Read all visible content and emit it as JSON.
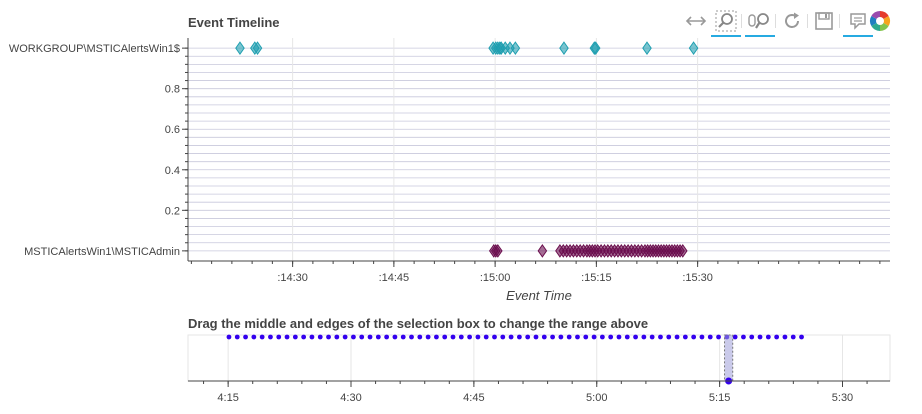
{
  "chart_data": [
    {
      "type": "scatter",
      "title": "Event Timeline",
      "xlabel": "Event Time",
      "ylabel": "",
      "x_ticks": [
        ":14:30",
        ":14:45",
        ":15:00",
        ":15:15",
        ":15:30"
      ],
      "x_tick_minutes": [
        0,
        15,
        30,
        45,
        60
      ],
      "xlim_minutes": [
        -15.5,
        88.5
      ],
      "ylim": [
        -0.05,
        1.05
      ],
      "y_ticks": [
        {
          "value": 1.0,
          "label": "WORKGROUP\\MSTICAlertsWin1$"
        },
        {
          "value": 0.8,
          "label": "0.8"
        },
        {
          "value": 0.6,
          "label": "0.6"
        },
        {
          "value": 0.4,
          "label": "0.4"
        },
        {
          "value": 0.2,
          "label": "0.2"
        },
        {
          "value": 0.0,
          "label": "MSTICAlertsWin1\\MSTICAdmin"
        }
      ],
      "marker": "diamond",
      "series": [
        {
          "name": "WORKGROUP\\MSTICAlertsWin1$",
          "color": "#1f9fb0",
          "y": 1.0,
          "x_minutes": [
            -7.8,
            -5.6,
            -5.2,
            29.7,
            30.1,
            30.4,
            30.7,
            30.9,
            31.5,
            32.2,
            33.0,
            40.2,
            44.7,
            44.9,
            52.5,
            59.4
          ]
        },
        {
          "name": "MSTICAlertsWin1\\MSTICAdmin",
          "color": "#6b0e4e",
          "y": 0.0,
          "x_minutes": [
            29.8,
            30.1,
            30.4,
            37.0,
            39.6,
            40.1,
            40.6,
            41.1,
            41.6,
            42.1,
            42.6,
            43.1,
            43.6,
            44.0,
            44.4,
            44.8,
            45.2,
            45.7,
            46.2,
            46.7,
            47.2,
            47.7,
            48.2,
            48.7,
            49.2,
            49.7,
            50.2,
            50.7,
            51.2,
            51.7,
            52.2,
            52.6,
            53.0,
            53.4,
            53.8,
            54.2,
            54.6,
            55.0,
            55.4,
            55.8,
            56.2,
            56.6,
            57.0,
            57.4,
            57.8
          ]
        }
      ]
    },
    {
      "type": "scatter",
      "title": "Drag the middle and edges of the selection box to change the range above",
      "x_ticks": [
        "4:15",
        "4:30",
        "4:45",
        "5:00",
        "5:15",
        "5:30"
      ],
      "x_tick_minutes": [
        0,
        15,
        30,
        45,
        60,
        75
      ],
      "xlim_minutes": [
        -4.9,
        80.8
      ],
      "color": "#3300ee",
      "point_count": 70,
      "x_range_minutes": [
        0.1,
        70.0
      ],
      "selection_minutes": [
        60.6,
        61.6
      ]
    }
  ],
  "toolbar": [
    {
      "name": "pan-icon",
      "active": false
    },
    {
      "name": "box-zoom-icon",
      "active": true
    },
    {
      "name": "wheel-zoom-icon",
      "active": true
    },
    {
      "name": "reset-icon",
      "active": false
    },
    {
      "name": "save-icon",
      "active": false
    },
    {
      "name": "hover-icon",
      "active": true
    },
    {
      "name": "bokeh-logo-icon",
      "active": false
    }
  ]
}
